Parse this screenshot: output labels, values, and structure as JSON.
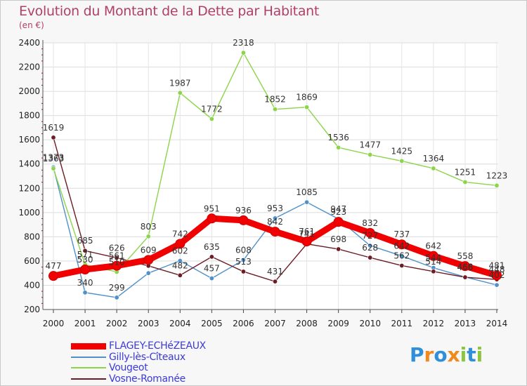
{
  "chart_data": {
    "type": "line",
    "title": "Evolution du Montant de la Dette par Habitant",
    "subtitle": "(en €)",
    "xlabel": "",
    "ylabel": "",
    "ylim": [
      200,
      2400
    ],
    "yticks": [
      200,
      400,
      600,
      800,
      1000,
      1200,
      1400,
      1600,
      1800,
      2000,
      2200,
      2400
    ],
    "x": [
      "2000",
      "2001",
      "2002",
      "2003",
      "2004",
      "2005",
      "2006",
      "2007",
      "2008",
      "2009",
      "2010",
      "2011",
      "2012",
      "2013",
      "2014"
    ],
    "grid": true,
    "series": [
      {
        "name": "Gilly-lès-Cîteaux",
        "color": "#4f91c8",
        "values": [
          1373,
          340,
          299,
          500,
          602,
          457,
          608,
          953,
          1085,
          947,
          727,
          642,
          544,
          468,
          402
        ],
        "labels": [
          "1373",
          "340",
          "299",
          "",
          "602",
          "457",
          "608",
          "953",
          "1085",
          "947",
          "727",
          "642",
          "544",
          "468",
          "402"
        ]
      },
      {
        "name": "Vosne-Romanée",
        "color": "#6b1c25",
        "values": [
          1619,
          685,
          626,
          560,
          482,
          635,
          513,
          431,
          741,
          698,
          628,
          562,
          514,
          466,
          448
        ],
        "labels": [
          "1619",
          "685",
          "626",
          "",
          "482",
          "635",
          "513",
          "431",
          "741",
          "698",
          "628",
          "562",
          "514",
          "466",
          "448"
        ]
      },
      {
        "name": "Vougeot",
        "color": "#8cd44a",
        "values": [
          1363,
          571,
          510,
          803,
          1987,
          1772,
          2318,
          1852,
          1869,
          1536,
          1477,
          1425,
          1364,
          1251,
          1223
        ],
        "labels": [
          "1363",
          "571",
          "510",
          "803",
          "1987",
          "1772",
          "2318",
          "1852",
          "1869",
          "1536",
          "1477",
          "1425",
          "1364",
          "1251",
          "1223"
        ]
      },
      {
        "name": "FLAGEY-ECHéZEAUX",
        "color": "#f00000",
        "values": [
          477,
          530,
          561,
          609,
          742,
          951,
          936,
          842,
          761,
          923,
          832,
          737,
          642,
          558,
          481
        ],
        "labels": [
          "477",
          "530",
          "561",
          "609",
          "742",
          "951",
          "936",
          "842",
          "761",
          "923",
          "832",
          "737",
          "642",
          "558",
          "481"
        ]
      }
    ],
    "legend": [
      "FLAGEY-ECHéZEAUX",
      "Gilly-lès-Cîteaux",
      "Vougeot",
      "Vosne-Romanée"
    ]
  },
  "legend_items": [
    {
      "label": "FLAGEY-ECHéZEAUX",
      "color": "#f00000",
      "thickness": "thick"
    },
    {
      "label": "Gilly-lès-Cîteaux",
      "color": "#4f91c8",
      "thickness": "thin"
    },
    {
      "label": "Vougeot",
      "color": "#8cd44a",
      "thickness": "thin"
    },
    {
      "label": "Vosne-Romanée",
      "color": "#6b1c25",
      "thickness": "thin"
    }
  ],
  "logo": {
    "text": "Proxiti",
    "letters": [
      "P",
      "r",
      "o",
      "x",
      "i",
      "t",
      "i"
    ],
    "colors": [
      "#2f8fd8",
      "#f08a1c",
      "#2f8fd8",
      "#f08a1c",
      "#8cc63e",
      "#2f8fd8",
      "#8cc63e"
    ]
  }
}
